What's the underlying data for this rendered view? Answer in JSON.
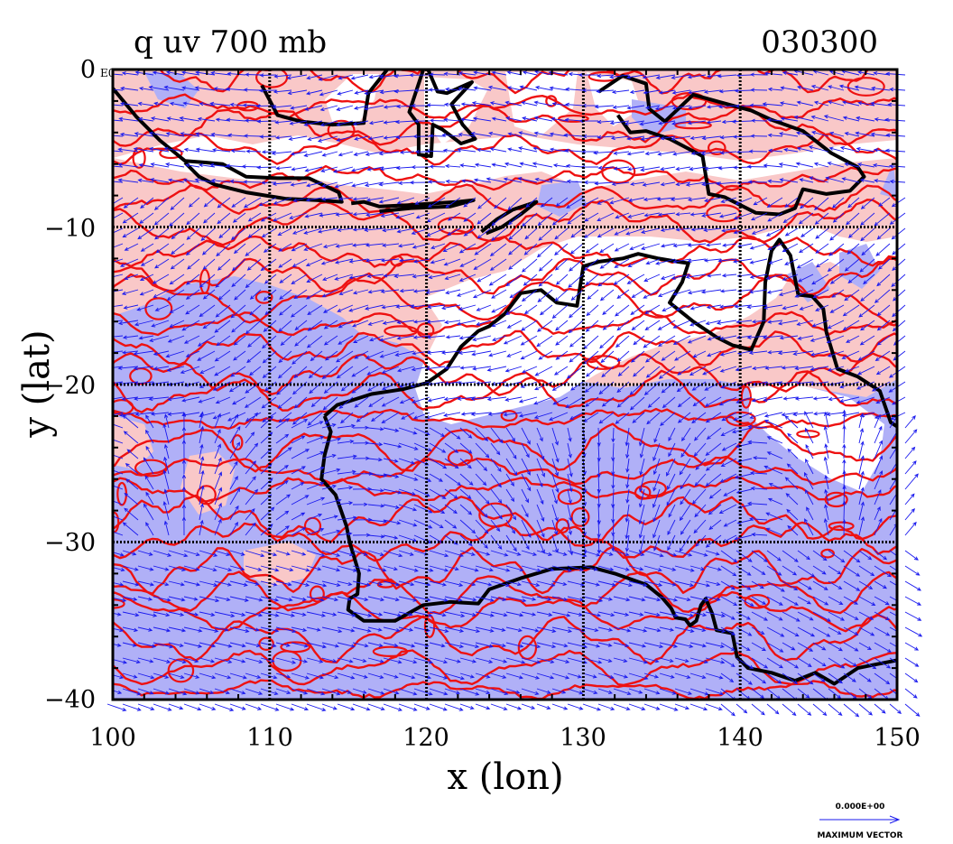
{
  "title_left": "q uv 700 mb",
  "title_right": "030300",
  "x_label": "x (lon)",
  "y_label": "y (lat)",
  "x_ticks": [
    "100",
    "110",
    "120",
    "130",
    "140",
    "150"
  ],
  "y_ticks": [
    "0",
    "−10",
    "−20",
    "−30",
    "−40"
  ],
  "corner_tag": "E0",
  "ref_vector_value": "0.000E+00",
  "ref_vector_label": "MAXIMUM VECTOR",
  "chart_data": {
    "type": "contour+vector map",
    "region": "Australia and Maritime Continent",
    "variables": [
      "q (specific humidity)",
      "uv (wind vectors)"
    ],
    "level": "700 mb",
    "xlim": [
      100,
      150
    ],
    "ylim": [
      -40,
      0
    ],
    "grid": true,
    "colors": {
      "high_q": "#b0b0f7",
      "mid_q": "#f9c8c8",
      "low_q": "#ffffff",
      "contour": "#ee1111",
      "vector": "#1a1aee",
      "coast": "#000000"
    },
    "coastlines": {
      "australia": [
        [
          113.5,
          -22
        ],
        [
          114.3,
          -21.3
        ],
        [
          116.5,
          -20.6
        ],
        [
          118.5,
          -20.3
        ],
        [
          120,
          -19.9
        ],
        [
          121.3,
          -19
        ],
        [
          122.2,
          -17.6
        ],
        [
          123.3,
          -16.6
        ],
        [
          124,
          -16.3
        ],
        [
          125,
          -15.5
        ],
        [
          126,
          -14.2
        ],
        [
          127.3,
          -14
        ],
        [
          128.3,
          -14.8
        ],
        [
          129.6,
          -15
        ],
        [
          130,
          -12.5
        ],
        [
          131,
          -12.2
        ],
        [
          132.5,
          -12
        ],
        [
          133.5,
          -11.7
        ],
        [
          134.8,
          -12
        ],
        [
          136,
          -12.2
        ],
        [
          136.7,
          -12.3
        ],
        [
          136.3,
          -13.5
        ],
        [
          135.5,
          -14.8
        ],
        [
          137,
          -16
        ],
        [
          138.5,
          -17
        ],
        [
          139.5,
          -17.5
        ],
        [
          140.7,
          -17.8
        ],
        [
          141.5,
          -16
        ],
        [
          141.6,
          -13.5
        ],
        [
          142,
          -11.5
        ],
        [
          142.5,
          -10.8
        ],
        [
          143.2,
          -11.8
        ],
        [
          143.7,
          -14.3
        ],
        [
          144.6,
          -14.4
        ],
        [
          145.3,
          -15.2
        ],
        [
          145.5,
          -16.7
        ],
        [
          146.2,
          -19
        ],
        [
          147.5,
          -19.5
        ],
        [
          148.9,
          -20.4
        ],
        [
          149.6,
          -22.4
        ],
        [
          150.5,
          -23
        ],
        [
          150.8,
          -24.2
        ],
        [
          150.8,
          -25
        ]
      ],
      "australia_south": [
        [
          150.8,
          -36.9
        ],
        [
          150,
          -37.5
        ],
        [
          148.5,
          -37.8
        ],
        [
          147.5,
          -38
        ],
        [
          146,
          -39
        ],
        [
          144.8,
          -38.3
        ],
        [
          143.5,
          -38.8
        ],
        [
          142,
          -38.3
        ],
        [
          140.5,
          -38
        ],
        [
          139.8,
          -37.3
        ],
        [
          139.5,
          -35.8
        ],
        [
          138.5,
          -35.6
        ],
        [
          138.2,
          -34.5
        ],
        [
          137.8,
          -33.6
        ],
        [
          137.5,
          -34
        ],
        [
          137.2,
          -35
        ],
        [
          136.8,
          -35.3
        ],
        [
          136.5,
          -34.9
        ],
        [
          135.9,
          -34.8
        ],
        [
          135.6,
          -34.2
        ],
        [
          135,
          -33.5
        ],
        [
          134,
          -32.7
        ],
        [
          132,
          -32
        ],
        [
          130.5,
          -31.6
        ],
        [
          128,
          -31.7
        ],
        [
          126,
          -32.3
        ],
        [
          124,
          -33
        ],
        [
          123.3,
          -33.9
        ],
        [
          121.5,
          -33.8
        ],
        [
          119.8,
          -34
        ],
        [
          118,
          -35
        ],
        [
          116,
          -35
        ],
        [
          115,
          -34.3
        ],
        [
          115.1,
          -33.6
        ],
        [
          115.6,
          -33.3
        ],
        [
          115.7,
          -32
        ],
        [
          115.1,
          -30
        ],
        [
          114.9,
          -29
        ],
        [
          114.2,
          -27
        ],
        [
          113.3,
          -26
        ],
        [
          113.5,
          -24.5
        ],
        [
          113.9,
          -23
        ],
        [
          113.5,
          -22
        ]
      ],
      "sumatra_java": [
        [
          100,
          -1.2
        ],
        [
          101.5,
          -3
        ],
        [
          103,
          -4.5
        ],
        [
          104.6,
          -5.8
        ],
        [
          105.9,
          -5.9
        ],
        [
          107,
          -6
        ],
        [
          108.5,
          -6.8
        ],
        [
          110.5,
          -6.9
        ],
        [
          112.5,
          -6.9
        ],
        [
          114.4,
          -7.8
        ],
        [
          114.6,
          -8.4
        ],
        [
          113,
          -8.3
        ],
        [
          111,
          -8.2
        ],
        [
          108.5,
          -7.8
        ],
        [
          106.5,
          -7.3
        ],
        [
          105.5,
          -6.8
        ],
        [
          104.6,
          -5.9
        ]
      ],
      "borneo": [
        [
          109.5,
          -1
        ],
        [
          110.5,
          -2.9
        ],
        [
          112,
          -3.3
        ],
        [
          114,
          -3.5
        ],
        [
          116,
          -3.4
        ],
        [
          116.3,
          -1.5
        ],
        [
          117.5,
          0
        ]
      ],
      "sulawesi": [
        [
          120.1,
          0
        ],
        [
          120.7,
          -1.4
        ],
        [
          121.3,
          -1.5
        ],
        [
          122.9,
          -0.8
        ],
        [
          121.6,
          -2.2
        ],
        [
          122.3,
          -3.5
        ],
        [
          123.1,
          -4.4
        ],
        [
          122.2,
          -4.7
        ],
        [
          121,
          -3.8
        ],
        [
          120.4,
          -3.5
        ],
        [
          120.3,
          -5.5
        ],
        [
          119.5,
          -5.4
        ],
        [
          119.5,
          -3.5
        ],
        [
          118.9,
          -2.7
        ],
        [
          119.3,
          -1.5
        ],
        [
          119.8,
          0
        ]
      ],
      "lesser_sunda": [
        [
          115.2,
          -8.5
        ],
        [
          116,
          -8.4
        ],
        [
          117,
          -8.7
        ],
        [
          119,
          -8.6
        ],
        [
          120.5,
          -8.5
        ],
        [
          122,
          -8.4
        ],
        [
          123,
          -8.3
        ],
        [
          121.5,
          -8.7
        ],
        [
          119,
          -8.8
        ],
        [
          117,
          -9
        ]
      ],
      "timor": [
        [
          123.5,
          -10.3
        ],
        [
          124.5,
          -9.5
        ],
        [
          125.5,
          -8.9
        ],
        [
          127,
          -8.4
        ],
        [
          126,
          -9.2
        ],
        [
          124.8,
          -10
        ],
        [
          123.8,
          -10.4
        ]
      ],
      "new_guinea": [
        [
          131,
          -1.4
        ],
        [
          132.5,
          -0.4
        ],
        [
          134,
          -0.9
        ],
        [
          134.2,
          -2.5
        ],
        [
          135.2,
          -3.3
        ],
        [
          137,
          -1.6
        ],
        [
          138.8,
          -2.1
        ],
        [
          140.7,
          -2.6
        ],
        [
          142,
          -3.2
        ],
        [
          144,
          -3.9
        ],
        [
          145.8,
          -5.3
        ],
        [
          147.5,
          -6.2
        ],
        [
          147.9,
          -6.8
        ],
        [
          147,
          -7.7
        ],
        [
          145.5,
          -7.9
        ],
        [
          144,
          -7.6
        ],
        [
          143.5,
          -8.8
        ],
        [
          142.5,
          -9.2
        ],
        [
          141,
          -9.1
        ],
        [
          139,
          -8.1
        ],
        [
          138,
          -7.9
        ],
        [
          137.6,
          -5.5
        ],
        [
          135.5,
          -4.4
        ],
        [
          134,
          -3.9
        ],
        [
          133,
          -4
        ],
        [
          132.2,
          -2.9
        ]
      ]
    }
  }
}
